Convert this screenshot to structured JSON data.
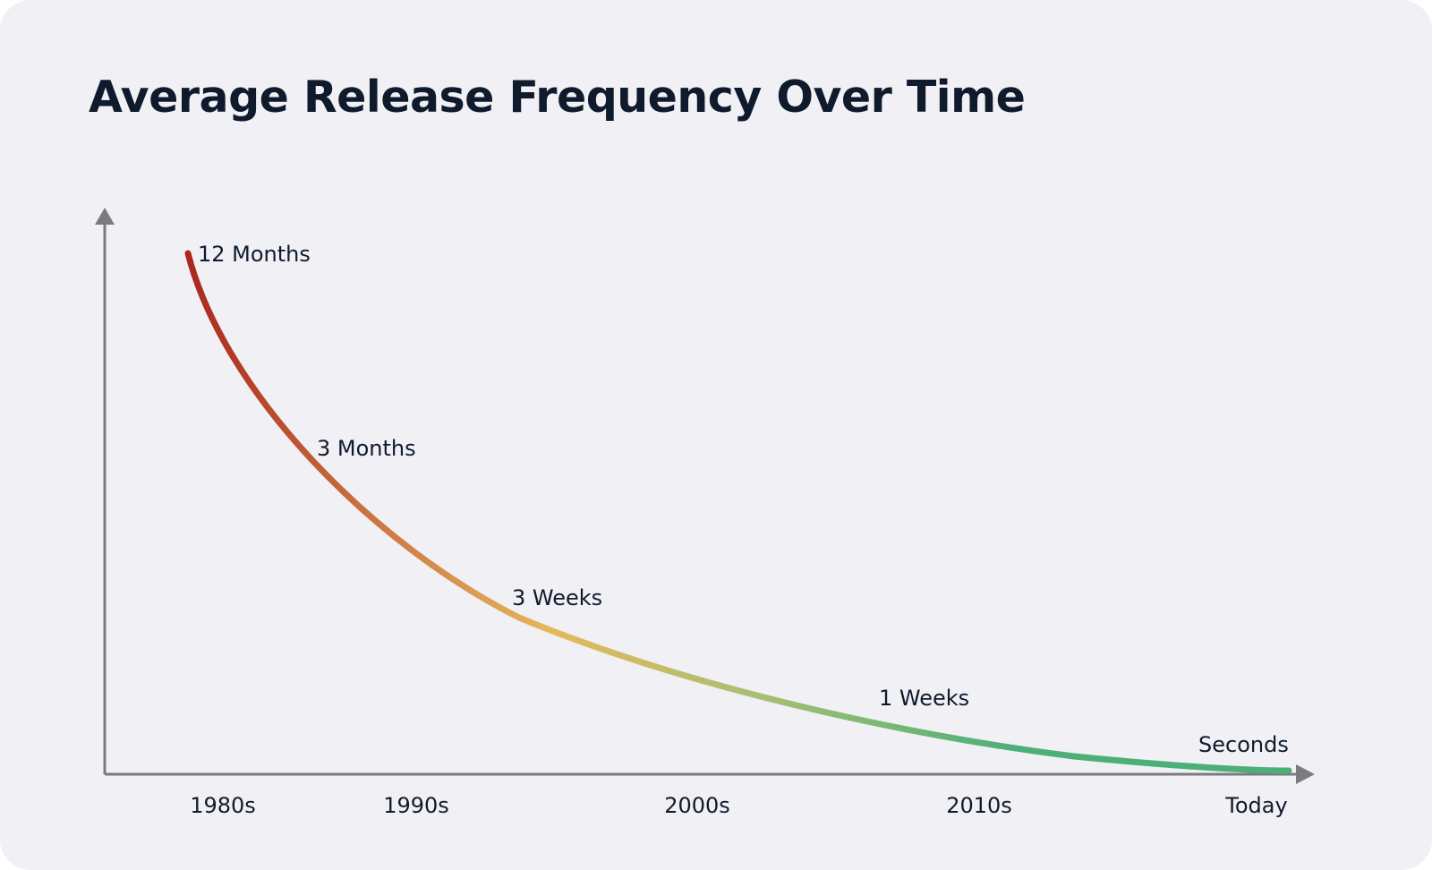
{
  "chart_data": {
    "type": "line",
    "title": "Average Release Frequency Over Time",
    "xlabel": "",
    "ylabel": "",
    "x_ticks": [
      "1980s",
      "1990s",
      "2000s",
      "2010s",
      "Today"
    ],
    "point_labels": [
      "12 Months",
      "3 Months",
      "3 Weeks",
      "1 Weeks",
      "Seconds"
    ],
    "grid": false,
    "legend": "none",
    "colors": {
      "start": "#a8281f",
      "mid_high": "#cf7a45",
      "mid": "#e4b95c",
      "mid_low": "#a8bf73",
      "end": "#4caf78",
      "axis": "#7a7a80",
      "text": "#0f1b2d",
      "background": "#f1f0f5"
    }
  }
}
